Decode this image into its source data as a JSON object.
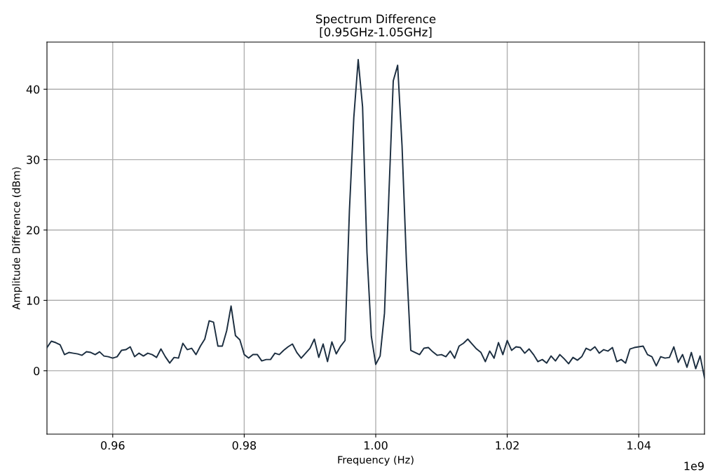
{
  "chart_data": {
    "type": "line",
    "title": "Spectrum Difference\n[0.95GHz-1.05GHz]",
    "xlabel": "Frequency (Hz)",
    "ylabel": "Amplitude Difference (dBm)",
    "annotations": [
      "1e9"
    ],
    "xlim": [
      0.95,
      1.05
    ],
    "ylim": [
      -9,
      46.7
    ],
    "xticks": [
      0.96,
      0.98,
      {
        "value": 1.0,
        "label": "1.00"
      },
      1.02,
      1.04
    ],
    "yticks": [
      0,
      10,
      20,
      30,
      40
    ],
    "grid": true,
    "marker": "none",
    "line_style": "solid",
    "series": [
      {
        "color": "#1c2e40",
        "x": [
          0.95,
          0.950667,
          0.951333,
          0.952,
          0.952667,
          0.953333,
          0.954,
          0.954667,
          0.955333,
          0.956,
          0.956667,
          0.957333,
          0.958,
          0.958667,
          0.959333,
          0.96,
          0.960667,
          0.961333,
          0.962,
          0.962667,
          0.963333,
          0.964,
          0.964667,
          0.965333,
          0.966,
          0.966667,
          0.967333,
          0.968,
          0.968667,
          0.969333,
          0.97,
          0.970667,
          0.971333,
          0.972,
          0.972667,
          0.973333,
          0.974,
          0.974667,
          0.975333,
          0.976,
          0.976667,
          0.977333,
          0.978,
          0.978667,
          0.979333,
          0.98,
          0.980667,
          0.981333,
          0.982,
          0.982667,
          0.983333,
          0.984,
          0.984667,
          0.985333,
          0.986,
          0.986667,
          0.987333,
          0.988,
          0.988667,
          0.989333,
          0.99,
          0.990667,
          0.991333,
          0.992,
          0.992667,
          0.993333,
          0.994,
          0.994667,
          0.995333,
          0.996,
          0.996667,
          0.997333,
          0.998,
          0.998667,
          0.999333,
          1.0,
          1.000667,
          1.001333,
          1.002,
          1.002667,
          1.003333,
          1.004,
          1.004667,
          1.005333,
          1.006,
          1.006667,
          1.007333,
          1.008,
          1.008667,
          1.009333,
          1.01,
          1.010667,
          1.011333,
          1.012,
          1.012667,
          1.013333,
          1.014,
          1.014667,
          1.015333,
          1.016,
          1.016667,
          1.017333,
          1.018,
          1.018667,
          1.019333,
          1.02,
          1.020667,
          1.021333,
          1.022,
          1.022667,
          1.023333,
          1.024,
          1.024667,
          1.025333,
          1.026,
          1.026667,
          1.027333,
          1.028,
          1.028667,
          1.029333,
          1.03,
          1.030667,
          1.031333,
          1.032,
          1.032667,
          1.033333,
          1.034,
          1.034667,
          1.035333,
          1.036,
          1.036667,
          1.037333,
          1.038,
          1.038667,
          1.039333,
          1.04,
          1.040667,
          1.041333,
          1.042,
          1.042667,
          1.043333,
          1.044,
          1.044667,
          1.045333,
          1.046,
          1.046667,
          1.047333,
          1.048,
          1.048667,
          1.049333,
          1.05
        ],
        "values": [
          3.3,
          4.2,
          4.0,
          3.7,
          2.3,
          2.6,
          2.5,
          2.4,
          2.2,
          2.7,
          2.6,
          2.3,
          2.7,
          2.1,
          2.0,
          1.8,
          2.0,
          2.9,
          3.0,
          3.4,
          2.0,
          2.5,
          2.1,
          2.5,
          2.3,
          1.9,
          3.1,
          2.0,
          1.1,
          1.9,
          1.8,
          3.9,
          3.0,
          3.2,
          2.3,
          3.5,
          4.5,
          7.1,
          6.9,
          3.5,
          3.5,
          5.7,
          9.2,
          5.0,
          4.4,
          2.3,
          1.8,
          2.3,
          2.3,
          1.4,
          1.6,
          1.6,
          2.5,
          2.3,
          2.9,
          3.4,
          3.8,
          2.6,
          1.8,
          2.5,
          3.2,
          4.5,
          1.9,
          3.8,
          1.3,
          4.1,
          2.4,
          3.5,
          4.3,
          22.8,
          36.0,
          44.2,
          37.5,
          16.8,
          4.9,
          0.9,
          2.1,
          8.2,
          25.0,
          41.2,
          43.4,
          32.0,
          15.5,
          2.9,
          2.6,
          2.3,
          3.2,
          3.3,
          2.7,
          2.2,
          2.3,
          2.0,
          2.8,
          1.8,
          3.5,
          3.9,
          4.5,
          3.8,
          3.1,
          2.6,
          1.3,
          2.8,
          1.8,
          4.0,
          2.3,
          4.3,
          2.9,
          3.4,
          3.3,
          2.5,
          3.1,
          2.3,
          1.3,
          1.6,
          1.1,
          2.1,
          1.4,
          2.3,
          1.7,
          1.0,
          1.9,
          1.5,
          2.0,
          3.2,
          2.9,
          3.4,
          2.5,
          3.0,
          2.8,
          3.3,
          1.3,
          1.6,
          1.1,
          3.1,
          3.3,
          3.4,
          3.5,
          2.3,
          2.0,
          0.7,
          2.0,
          1.8,
          1.9,
          3.4,
          1.2,
          2.3,
          0.5,
          2.6,
          0.3,
          2.1,
          -1.0
        ]
      }
    ]
  }
}
